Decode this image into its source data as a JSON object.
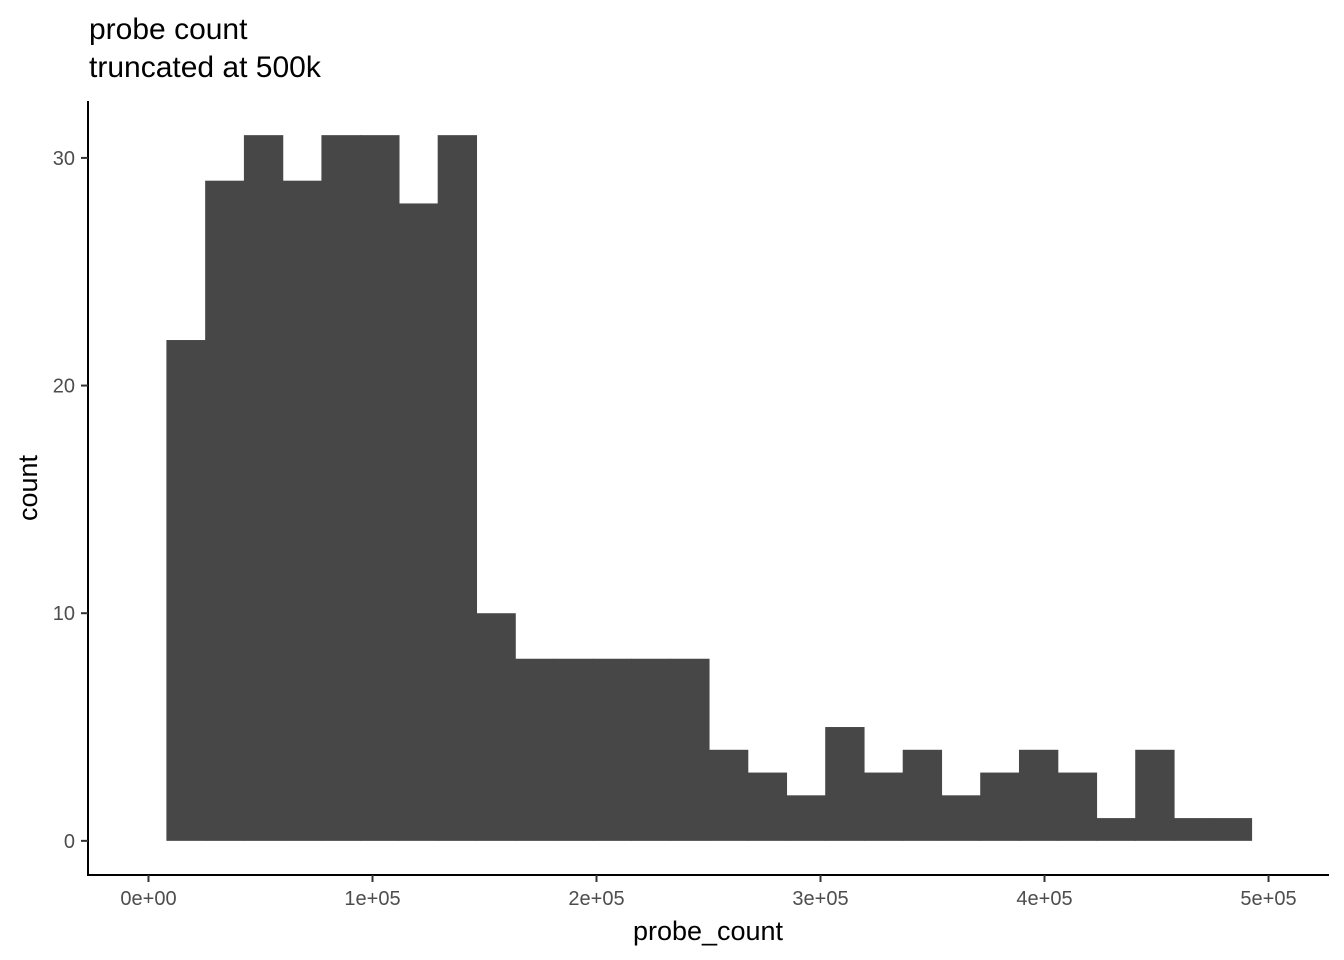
{
  "chart_data": {
    "type": "bar",
    "title": "probe count",
    "subtitle": "truncated at 500k",
    "xlabel": "probe_count",
    "ylabel": "count",
    "xlim": [
      -27000,
      527000
    ],
    "ylim": [
      -1.5,
      32.5
    ],
    "x_ticks": [
      {
        "value": 0,
        "label": "0e+00"
      },
      {
        "value": 100000,
        "label": "1e+05"
      },
      {
        "value": 200000,
        "label": "2e+05"
      },
      {
        "value": 300000,
        "label": "3e+05"
      },
      {
        "value": 400000,
        "label": "4e+05"
      },
      {
        "value": 500000,
        "label": "5e+05"
      }
    ],
    "y_ticks": [
      {
        "value": 0,
        "label": "0"
      },
      {
        "value": 10,
        "label": "10"
      },
      {
        "value": 20,
        "label": "20"
      },
      {
        "value": 30,
        "label": "30"
      }
    ],
    "bin_start": 8000,
    "bin_width": 17300,
    "values": [
      22,
      29,
      31,
      29,
      31,
      31,
      28,
      31,
      10,
      8,
      8,
      8,
      8,
      8,
      4,
      3,
      2,
      5,
      3,
      4,
      2,
      3,
      4,
      3,
      1,
      4,
      1,
      1
    ],
    "bar_color": "#474747",
    "grid": false,
    "legend": "none"
  }
}
